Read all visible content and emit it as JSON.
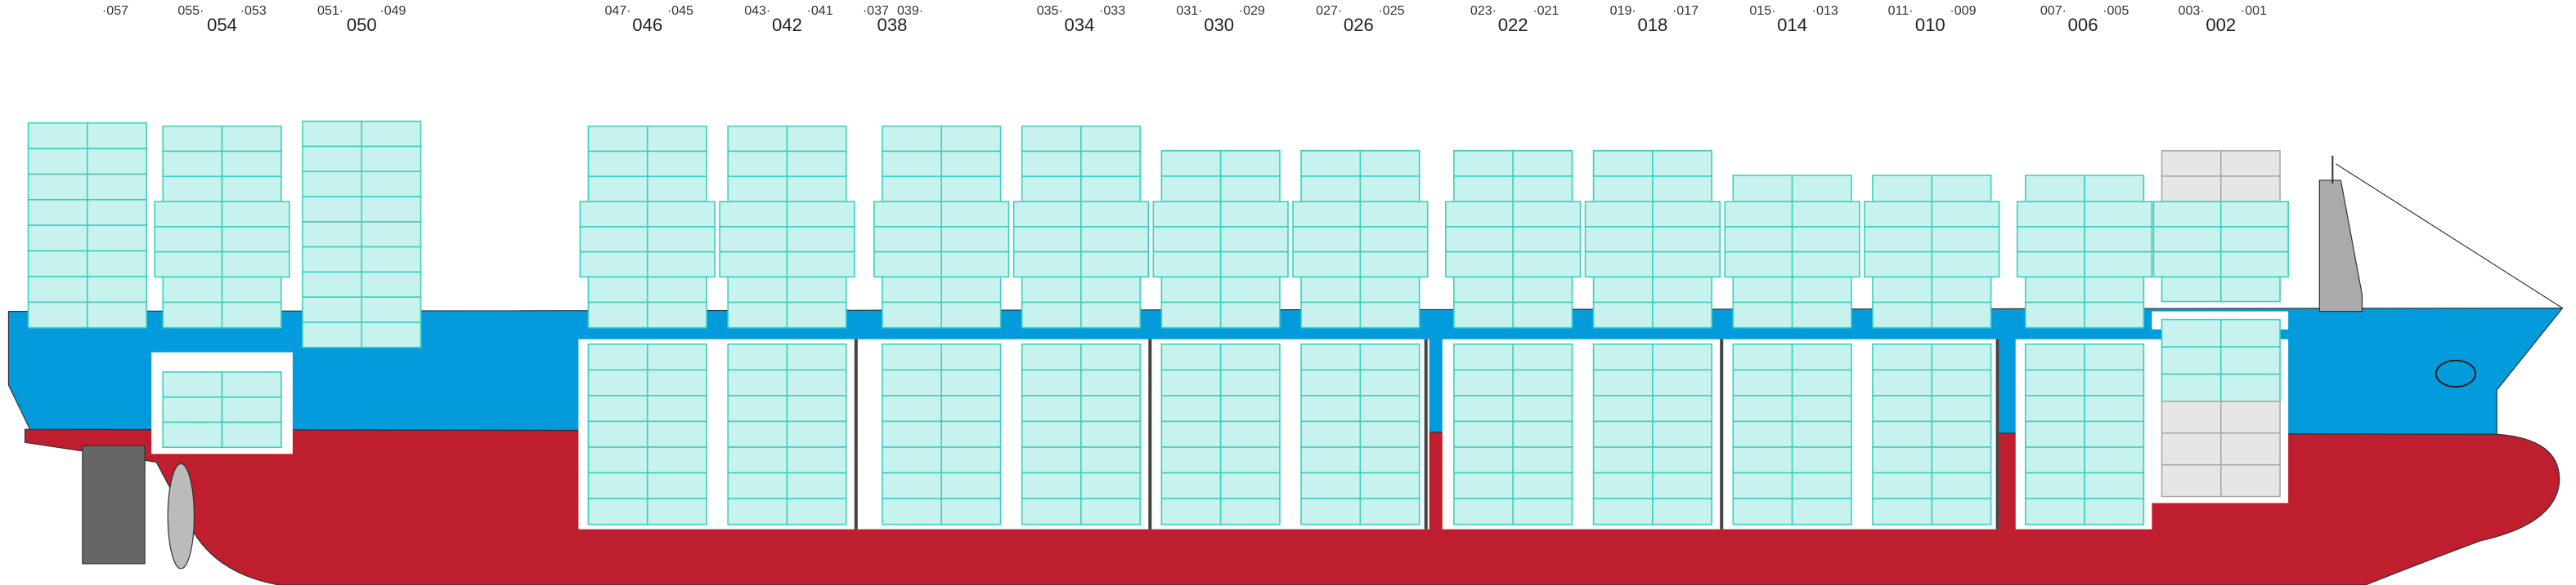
{
  "bay_labels": [
    "054",
    "050",
    "046",
    "042",
    "038",
    "034",
    "030",
    "026",
    "022",
    "018",
    "014",
    "010",
    "006",
    "002"
  ],
  "slot_labels": [
    "·057",
    "055·",
    "·053",
    "051·",
    "·049",
    "047·",
    "·045",
    "043·",
    "·041",
    "·037",
    "039·",
    "035·",
    "·033",
    "031·",
    "·029",
    "027·",
    "·025",
    "023·",
    "·021",
    "019·",
    "·017",
    "015·",
    "·013",
    "011·",
    "·009",
    "007·",
    "·005",
    "003·",
    "·001"
  ]
}
